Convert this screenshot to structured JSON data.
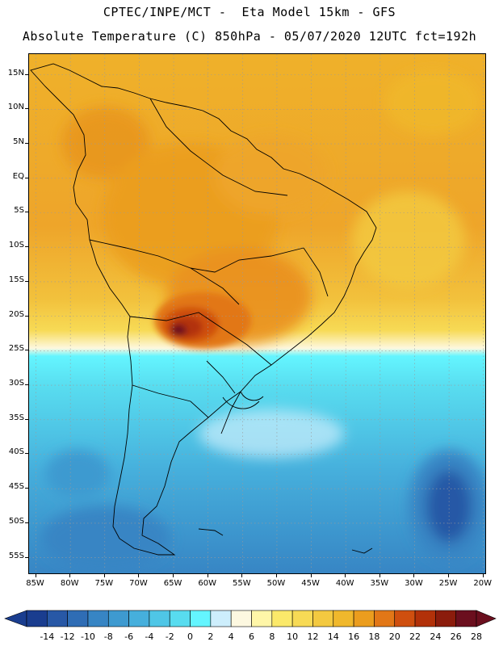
{
  "header": {
    "line1": "CPTEC/INPE/MCT -  Eta Model 15km - GFS",
    "line2": "Absolute Temperature (C) 850hPa - 05/07/2020 12UTC fct=192h"
  },
  "map": {
    "lat_labels": [
      "15N",
      "10N",
      "5N",
      "EQ",
      "5S",
      "10S",
      "15S",
      "20S",
      "25S",
      "30S",
      "35S",
      "40S",
      "45S",
      "50S",
      "55S"
    ],
    "lon_labels": [
      "85W",
      "80W",
      "75W",
      "70W",
      "65W",
      "60W",
      "55W",
      "50W",
      "45W",
      "40W",
      "35W",
      "30W",
      "25W",
      "20W"
    ],
    "lat_range": [
      18,
      -57.5
    ],
    "lon_range": [
      -86,
      -19.5
    ],
    "grid": true,
    "overlay": "country boundaries"
  },
  "colorbar": {
    "labels": [
      "-14",
      "-12",
      "-10",
      "-8",
      "-6",
      "-4",
      "-2",
      "0",
      "2",
      "4",
      "6",
      "8",
      "10",
      "12",
      "14",
      "16",
      "18",
      "20",
      "22",
      "24",
      "26",
      "28"
    ],
    "colors": [
      "#1a3d8f",
      "#2858a6",
      "#2f6db5",
      "#3785c4",
      "#3e9ad0",
      "#46afdc",
      "#4fc6e6",
      "#58dcef",
      "#64f5ff",
      "#cdeefc",
      "#fdf8e0",
      "#fff6a8",
      "#fbe96a",
      "#f7da55",
      "#f3c940",
      "#f0b82c",
      "#eb9d1e",
      "#e27717",
      "#cf4f0f",
      "#b23109",
      "#8b1c0c",
      "#6b0f1e"
    ]
  }
}
